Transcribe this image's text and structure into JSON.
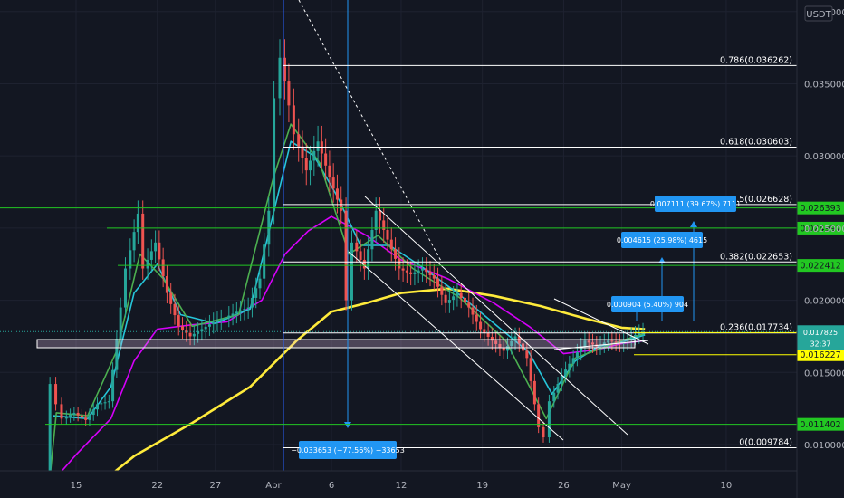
{
  "chart_data": {
    "type": "line",
    "currency": "USDT",
    "y_ticks": [
      0.01,
      0.015,
      0.02,
      0.025,
      0.03,
      0.035,
      0.04
    ],
    "x_ticks": [
      {
        "label": "15",
        "day": 15
      },
      {
        "label": "22",
        "day": 22
      },
      {
        "label": "27",
        "day": 27
      },
      {
        "label": "Apr",
        "day": 32
      },
      {
        "label": "6",
        "day": 37
      },
      {
        "label": "12",
        "day": 43
      },
      {
        "label": "19",
        "day": 50
      },
      {
        "label": "26",
        "day": 57
      },
      {
        "label": "May",
        "day": 62
      },
      {
        "label": "10",
        "day": 71
      }
    ],
    "ylim": [
      0.0063,
      0.0408
    ],
    "xlim": [
      10.1,
      76
    ],
    "fib_levels": [
      {
        "label": "0.786(0.036262)",
        "value": 0.036262
      },
      {
        "label": "0.618(0.030603)",
        "value": 0.030603
      },
      {
        "label": "0.5(0.026628)",
        "value": 0.026628
      },
      {
        "label": "0.382(0.022653)",
        "value": 0.022653
      },
      {
        "label": "0.236(0.017734)",
        "value": 0.017734
      },
      {
        "label": "0(0.009784)",
        "value": 0.009784
      }
    ],
    "horizontal_levels": [
      {
        "label": "0.026393",
        "value": 0.026393,
        "color": "#22c722"
      },
      {
        "label": "0.024997",
        "value": 0.024997,
        "color": "#22c722"
      },
      {
        "label": "0.022412",
        "value": 0.022412,
        "color": "#22c722"
      },
      {
        "label": "0.017752",
        "value": 0.017752,
        "color": "#ffff00"
      },
      {
        "label": "0.016227",
        "value": 0.016227,
        "color": "#ffff00"
      },
      {
        "label": "0.011402",
        "value": 0.011402,
        "color": "#22c722"
      }
    ],
    "last_price": {
      "value": 0.017825,
      "label": "0.017825",
      "countdown": "32:37"
    },
    "measurements": [
      {
        "label": "−0.033653 (−77.56%) −33653"
      },
      {
        "label": "0.000904 (5.40%) 904"
      },
      {
        "label": "0.004615 (25.98%) 4615"
      },
      {
        "label": "0.007111 (39.67%) 7111"
      }
    ],
    "price_series": [
      {
        "day": 12.5,
        "value": 0.0065
      },
      {
        "day": 13.0,
        "value": 0.0142
      },
      {
        "day": 13.5,
        "value": 0.0128
      },
      {
        "day": 14.0,
        "value": 0.0118
      },
      {
        "day": 15.0,
        "value": 0.0122
      },
      {
        "day": 16.0,
        "value": 0.0117
      },
      {
        "day": 17.0,
        "value": 0.0128
      },
      {
        "day": 18.0,
        "value": 0.013
      },
      {
        "day": 19.0,
        "value": 0.0195
      },
      {
        "day": 19.5,
        "value": 0.0222
      },
      {
        "day": 20.5,
        "value": 0.026
      },
      {
        "day": 21.0,
        "value": 0.0222
      },
      {
        "day": 22.0,
        "value": 0.024
      },
      {
        "day": 23.0,
        "value": 0.0205
      },
      {
        "day": 24.0,
        "value": 0.0182
      },
      {
        "day": 25.0,
        "value": 0.0175
      },
      {
        "day": 26.0,
        "value": 0.018
      },
      {
        "day": 27.0,
        "value": 0.0185
      },
      {
        "day": 28.0,
        "value": 0.0188
      },
      {
        "day": 29.0,
        "value": 0.0192
      },
      {
        "day": 30.0,
        "value": 0.0195
      },
      {
        "day": 31.0,
        "value": 0.0215
      },
      {
        "day": 31.8,
        "value": 0.0262
      },
      {
        "day": 32.3,
        "value": 0.034
      },
      {
        "day": 32.8,
        "value": 0.0368
      },
      {
        "day": 33.5,
        "value": 0.0335
      },
      {
        "day": 34.0,
        "value": 0.0315
      },
      {
        "day": 35.0,
        "value": 0.029
      },
      {
        "day": 36.0,
        "value": 0.031
      },
      {
        "day": 37.0,
        "value": 0.0285
      },
      {
        "day": 38.0,
        "value": 0.0262
      },
      {
        "day": 38.5,
        "value": 0.02
      },
      {
        "day": 39.0,
        "value": 0.024
      },
      {
        "day": 40.0,
        "value": 0.0222
      },
      {
        "day": 41.0,
        "value": 0.0262
      },
      {
        "day": 42.0,
        "value": 0.0242
      },
      {
        "day": 43.0,
        "value": 0.0222
      },
      {
        "day": 44.0,
        "value": 0.0218
      },
      {
        "day": 45.0,
        "value": 0.0222
      },
      {
        "day": 46.0,
        "value": 0.0215
      },
      {
        "day": 47.0,
        "value": 0.0198
      },
      {
        "day": 48.0,
        "value": 0.0205
      },
      {
        "day": 49.0,
        "value": 0.0195
      },
      {
        "day": 50.0,
        "value": 0.018
      },
      {
        "day": 51.0,
        "value": 0.0172
      },
      {
        "day": 52.0,
        "value": 0.0165
      },
      {
        "day": 53.0,
        "value": 0.0175
      },
      {
        "day": 54.0,
        "value": 0.016
      },
      {
        "day": 55.0,
        "value": 0.0112
      },
      {
        "day": 55.5,
        "value": 0.0105
      },
      {
        "day": 56.0,
        "value": 0.013
      },
      {
        "day": 57.0,
        "value": 0.0148
      },
      {
        "day": 58.0,
        "value": 0.016
      },
      {
        "day": 59.0,
        "value": 0.0172
      },
      {
        "day": 60.0,
        "value": 0.0168
      },
      {
        "day": 61.0,
        "value": 0.0172
      },
      {
        "day": 62.0,
        "value": 0.017
      },
      {
        "day": 63.0,
        "value": 0.0175
      },
      {
        "day": 64.0,
        "value": 0.0178
      }
    ],
    "ma_series": [
      {
        "name": "",
        "color": "#ffeb3b",
        "points": [
          {
            "day": 15.5,
            "value": 0.0063
          },
          {
            "day": 20.0,
            "value": 0.0092
          },
          {
            "day": 25.0,
            "value": 0.0115
          },
          {
            "day": 30.0,
            "value": 0.014
          },
          {
            "day": 34.0,
            "value": 0.0172
          },
          {
            "day": 37.0,
            "value": 0.0192
          },
          {
            "day": 40.0,
            "value": 0.0198
          },
          {
            "day": 43.0,
            "value": 0.0205
          },
          {
            "day": 47.0,
            "value": 0.0208
          },
          {
            "day": 51.0,
            "value": 0.0203
          },
          {
            "day": 55.0,
            "value": 0.0196
          },
          {
            "day": 59.0,
            "value": 0.0187
          },
          {
            "day": 62.0,
            "value": 0.0181
          },
          {
            "day": 64.0,
            "value": 0.018
          }
        ]
      },
      {
        "name": "",
        "color": "#d500f9",
        "points": [
          {
            "day": 12.5,
            "value": 0.007
          },
          {
            "day": 15.0,
            "value": 0.0093
          },
          {
            "day": 18.0,
            "value": 0.0118
          },
          {
            "day": 20.0,
            "value": 0.0158
          },
          {
            "day": 22.0,
            "value": 0.018
          },
          {
            "day": 25.0,
            "value": 0.0183
          },
          {
            "day": 28.0,
            "value": 0.0185
          },
          {
            "day": 31.0,
            "value": 0.02
          },
          {
            "day": 33.0,
            "value": 0.0232
          },
          {
            "day": 35.0,
            "value": 0.0248
          },
          {
            "day": 37.0,
            "value": 0.0258
          },
          {
            "day": 40.0,
            "value": 0.0245
          },
          {
            "day": 43.0,
            "value": 0.0228
          },
          {
            "day": 47.0,
            "value": 0.0215
          },
          {
            "day": 51.0,
            "value": 0.0198
          },
          {
            "day": 54.0,
            "value": 0.0182
          },
          {
            "day": 57.0,
            "value": 0.0163
          },
          {
            "day": 60.0,
            "value": 0.0166
          },
          {
            "day": 62.0,
            "value": 0.017
          },
          {
            "day": 64.0,
            "value": 0.0172
          }
        ]
      },
      {
        "name": "",
        "color": "#26c6da",
        "points": [
          {
            "day": 13.0,
            "value": 0.012
          },
          {
            "day": 16.0,
            "value": 0.0118
          },
          {
            "day": 18.0,
            "value": 0.014
          },
          {
            "day": 20.0,
            "value": 0.0205
          },
          {
            "day": 22.0,
            "value": 0.0225
          },
          {
            "day": 24.0,
            "value": 0.019
          },
          {
            "day": 27.0,
            "value": 0.0184
          },
          {
            "day": 30.0,
            "value": 0.0194
          },
          {
            "day": 32.0,
            "value": 0.026
          },
          {
            "day": 33.5,
            "value": 0.031
          },
          {
            "day": 35.5,
            "value": 0.03
          },
          {
            "day": 37.5,
            "value": 0.0272
          },
          {
            "day": 39.5,
            "value": 0.0238
          },
          {
            "day": 42.0,
            "value": 0.0238
          },
          {
            "day": 45.0,
            "value": 0.0222
          },
          {
            "day": 48.0,
            "value": 0.0204
          },
          {
            "day": 51.0,
            "value": 0.0184
          },
          {
            "day": 54.0,
            "value": 0.0164
          },
          {
            "day": 56.0,
            "value": 0.0135
          },
          {
            "day": 58.0,
            "value": 0.0158
          },
          {
            "day": 60.0,
            "value": 0.0168
          },
          {
            "day": 62.0,
            "value": 0.0171
          },
          {
            "day": 64.0,
            "value": 0.0176
          }
        ]
      },
      {
        "name": "",
        "color": "#4caf50",
        "points": [
          {
            "day": 12.6,
            "value": 0.0065
          },
          {
            "day": 13.3,
            "value": 0.0122
          },
          {
            "day": 16.0,
            "value": 0.012
          },
          {
            "day": 18.5,
            "value": 0.0165
          },
          {
            "day": 20.5,
            "value": 0.0232
          },
          {
            "day": 22.5,
            "value": 0.0215
          },
          {
            "day": 25.0,
            "value": 0.0182
          },
          {
            "day": 29.0,
            "value": 0.019
          },
          {
            "day": 32.0,
            "value": 0.0285
          },
          {
            "day": 33.5,
            "value": 0.0322
          },
          {
            "day": 36.0,
            "value": 0.0295
          },
          {
            "day": 38.5,
            "value": 0.0232
          },
          {
            "day": 41.0,
            "value": 0.0245
          },
          {
            "day": 44.0,
            "value": 0.0222
          },
          {
            "day": 48.0,
            "value": 0.0202
          },
          {
            "day": 52.0,
            "value": 0.0172
          },
          {
            "day": 55.5,
            "value": 0.0118
          },
          {
            "day": 58.0,
            "value": 0.016
          },
          {
            "day": 62.0,
            "value": 0.0172
          },
          {
            "day": 64.0,
            "value": 0.0177
          }
        ]
      }
    ]
  }
}
